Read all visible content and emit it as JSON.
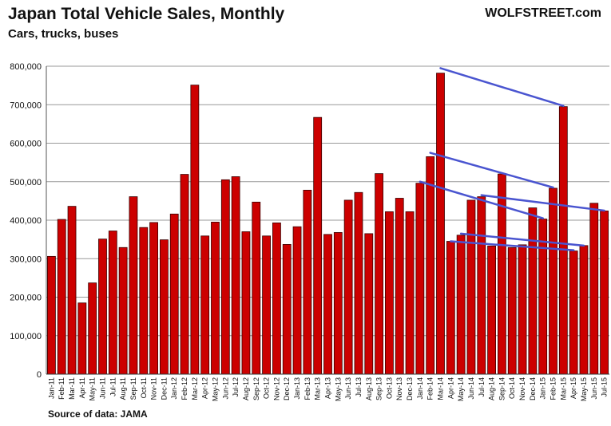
{
  "header": {
    "title": "Japan Total Vehicle Sales, Monthly",
    "subtitle": "Cars, trucks, buses",
    "brand": "WOLFSTREET.com"
  },
  "footer": {
    "source": "Source of data: JAMA"
  },
  "colors": {
    "bar_fill": "#cc0000",
    "bar_stroke": "#3a0000",
    "trend_line": "#4a55d0",
    "grid": "#999999"
  },
  "chart_data": {
    "type": "bar",
    "title": "Japan Total Vehicle Sales, Monthly",
    "subtitle": "Cars, trucks, buses",
    "xlabel": "",
    "ylabel": "",
    "ylim": [
      0,
      800000
    ],
    "yticks": [
      0,
      100000,
      200000,
      300000,
      400000,
      500000,
      600000,
      700000,
      800000
    ],
    "ytick_labels": [
      "0",
      "100,000",
      "200,000",
      "300,000",
      "400,000",
      "500,000",
      "600,000",
      "700,000",
      "800,000"
    ],
    "grid": true,
    "categories": [
      "Jan-11",
      "Feb-11",
      "Mar-11",
      "Apr-11",
      "May-11",
      "Jun-11",
      "Jul-11",
      "Aug-11",
      "Sep-11",
      "Oct-11",
      "Nov-11",
      "Dec-11",
      "Jan-12",
      "Feb-12",
      "Mar-12",
      "Apr-12",
      "May-12",
      "Jun-12",
      "Jul-12",
      "Aug-12",
      "Sep-12",
      "Oct-12",
      "Nov-12",
      "Dec-12",
      "Jan-13",
      "Feb-13",
      "Mar-13",
      "Apr-13",
      "May-13",
      "Jun-13",
      "Jul-13",
      "Aug-13",
      "Sep-13",
      "Oct-13",
      "Nov-13",
      "Dec-13",
      "Jan-14",
      "Feb-14",
      "Mar-14",
      "Apr-14",
      "May-14",
      "Jun-14",
      "Jul-14",
      "Aug-14",
      "Sep-14",
      "Oct-14",
      "Nov-14",
      "Dec-14",
      "Jan-15",
      "Feb-15",
      "Mar-15",
      "Apr-15",
      "May-15",
      "Jun-15",
      "Jul-15"
    ],
    "tick_labels": [
      "Jan-11",
      "Feb-11",
      "Mar-11",
      "Apr-11",
      "May-11",
      "Jun-11",
      "Jul-11",
      "Aug-11",
      "Sep-11",
      "Oct-11",
      "Nov-11",
      "Dec-11",
      "Jan-12",
      "Feb-12",
      "Mar-12",
      "Apr-12",
      "May-12",
      "Jun-12",
      "Jul-12",
      "Aug-12",
      "Sep-12",
      "Oct-12",
      "Nov-12",
      "Dec-12",
      "Jan-13",
      "Feb-13",
      "Mar-13",
      "Apr-13",
      "May-13",
      "Jun-13",
      "Jul-13",
      "Aug-13",
      "Sep-13",
      "Oct-13",
      "Nov-13",
      "Dec-13",
      "Jan-14",
      "Feb-14",
      "Mar-14",
      "Apr-14",
      "May-14",
      "Jun-14",
      "Jul-14",
      "Aug-14",
      "Sep-14",
      "Oct-14",
      "Nov-14",
      "Dec-14",
      "Jan-15",
      "Feb-15",
      "Mar-15",
      "Apr-15",
      "May-15",
      "Jun-15",
      "Jul-15"
    ],
    "values": [
      306000,
      402000,
      436000,
      185000,
      237000,
      351000,
      372000,
      329000,
      461000,
      381000,
      394000,
      349000,
      416000,
      519000,
      751000,
      359000,
      395000,
      505000,
      513000,
      370000,
      447000,
      359000,
      393000,
      337000,
      383000,
      478000,
      667000,
      363000,
      368000,
      452000,
      472000,
      365000,
      521000,
      422000,
      457000,
      422000,
      496000,
      565000,
      782000,
      345000,
      361000,
      452000,
      461000,
      333000,
      520000,
      329000,
      336000,
      432000,
      403000,
      483000,
      695000,
      320000,
      334000,
      444000,
      424000
    ],
    "trend_lines": [
      {
        "from": [
          "Mar-14",
          795000
        ],
        "to": [
          "Mar-15",
          697000
        ]
      },
      {
        "from": [
          "Feb-14",
          575000
        ],
        "to": [
          "Feb-15",
          485000
        ]
      },
      {
        "from": [
          "Jan-14",
          500000
        ],
        "to": [
          "Jan-15",
          405000
        ]
      },
      {
        "from": [
          "Jul-14",
          465000
        ],
        "to": [
          "Jul-15",
          425000
        ]
      },
      {
        "from": [
          "Apr-14",
          345000
        ],
        "to": [
          "Apr-15",
          322000
        ]
      },
      {
        "from": [
          "May-14",
          365000
        ],
        "to": [
          "May-15",
          334000
        ]
      }
    ]
  }
}
